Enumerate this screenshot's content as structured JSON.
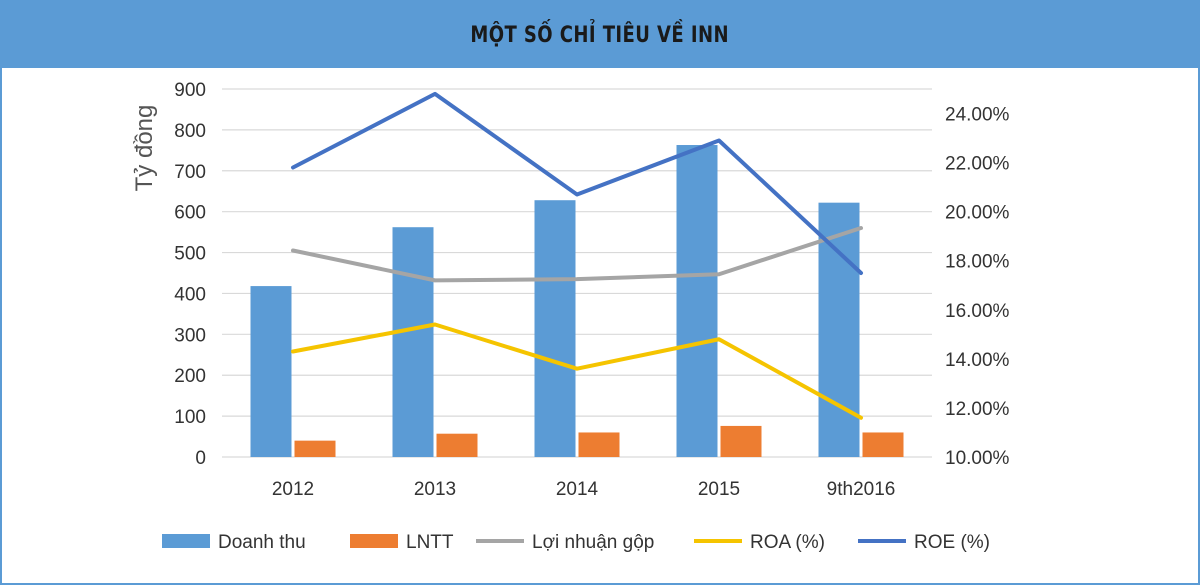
{
  "header": {
    "title": "MỘT SỐ CHỈ TIÊU VỀ INN"
  },
  "chart_data": {
    "type": "bar",
    "title": "MỘT SỐ CHỈ TIÊU VỀ INN",
    "ylabel": "Tỷ đồng",
    "xlabel": "",
    "categories": [
      "2012",
      "2013",
      "2014",
      "2015",
      "9th2016"
    ],
    "ylim": [
      0,
      900
    ],
    "yticks": [
      "0",
      "100",
      "200",
      "300",
      "400",
      "500",
      "600",
      "700",
      "800",
      "900"
    ],
    "y2lim": [
      10,
      25
    ],
    "y2ticks": [
      "10.00%",
      "12.00%",
      "14.00%",
      "16.00%",
      "18.00%",
      "20.00%",
      "22.00%",
      "24.00%"
    ],
    "series": [
      {
        "name": "Doanh thu",
        "type": "bar",
        "axis": "left",
        "color": "#5b9bd5",
        "values": [
          418,
          562,
          628,
          763,
          622
        ]
      },
      {
        "name": "LNTT",
        "type": "bar",
        "axis": "left",
        "color": "#ed7d31",
        "values": [
          40,
          57,
          60,
          76,
          60
        ]
      },
      {
        "name": "Lợi nhuận gộp",
        "type": "line",
        "axis": "left",
        "color": "#a5a5a5",
        "values": [
          505,
          432,
          435,
          447,
          560
        ]
      },
      {
        "name": "ROA (%)",
        "type": "line",
        "axis": "right",
        "color": "#f5c400",
        "values": [
          14.3,
          15.4,
          13.6,
          14.8,
          11.6
        ]
      },
      {
        "name": "ROE (%)",
        "type": "line",
        "axis": "right",
        "color": "#4472c4",
        "values": [
          21.8,
          24.8,
          20.7,
          22.9,
          17.5
        ]
      }
    ],
    "legend": "bottom",
    "grid": true
  }
}
